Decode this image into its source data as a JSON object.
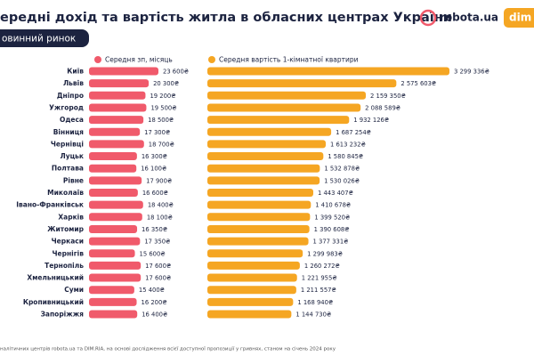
{
  "chart_data": {
    "type": "bar",
    "title": "ередні дохід та вартість житла в обласних центрах України",
    "subtitle": "овинний ринок",
    "categories": [
      "Київ",
      "Львів",
      "Дніпро",
      "Ужгород",
      "Одеса",
      "Вінниця",
      "Чернівці",
      "Луцьк",
      "Полтава",
      "Рівне",
      "Миколаїв",
      "Івано-Франківськ",
      "Харків",
      "Житомир",
      "Черкаси",
      "Чернігів",
      "Тернопіль",
      "Хмельницький",
      "Суми",
      "Кропивницький",
      "Запоріжжя"
    ],
    "series": [
      {
        "name": "Середня зп, місяць",
        "color": "#f05a6b",
        "values": [
          23600,
          20300,
          19200,
          19500,
          18500,
          17300,
          18700,
          16300,
          16100,
          17900,
          16600,
          18400,
          18100,
          16350,
          17350,
          15600,
          17600,
          17600,
          15400,
          16200,
          16400
        ],
        "value_labels": [
          "23 600₴",
          "20 300₴",
          "19 200₴",
          "19 500₴",
          "18 500₴",
          "17 300₴",
          "18 700₴",
          "16 300₴",
          "16 100₴",
          "17 900₴",
          "16 600₴",
          "18 400₴",
          "18 100₴",
          "16 350₴",
          "17 350₴",
          "15 600₴",
          "17 600₴",
          "17 600₴",
          "15 400₴",
          "16 200₴",
          "16 400₴"
        ]
      },
      {
        "name": "Середня вартість 1-кімнатної квартири",
        "color": "#f5a623",
        "values": [
          3299336,
          2575603,
          2159350,
          2088589,
          1932126,
          1687254,
          1613232,
          1580845,
          1532878,
          1530026,
          1443407,
          1410678,
          1399520,
          1390608,
          1377331,
          1299983,
          1260272,
          1221955,
          1211557,
          1168940,
          1144730
        ],
        "value_labels": [
          "3 299 336₴",
          "2 575 603₴",
          "2 159 350₴",
          "2 088 589₴",
          "1 932 126₴",
          "1 687 254₴",
          "1 613 232₴",
          "1 580 845₴",
          "1 532 878₴",
          "1 530 026₴",
          "1 443 407₴",
          "1 410 678₴",
          "1 399 520₴",
          "1 390 608₴",
          "1 377 331₴",
          "1 299 983₴",
          "1 260 272₴",
          "1 221 955₴",
          "1 211 557₴",
          "1 168 940₴",
          "1 144 730₴"
        ]
      }
    ]
  },
  "branding": [
    "robota.ua",
    "dim"
  ],
  "footer": "налітичних центрів  robota.ua та DIM.RIA, на основі дослідження всієї доступної пропозиції у гривнях, станом на січень 2024 року"
}
